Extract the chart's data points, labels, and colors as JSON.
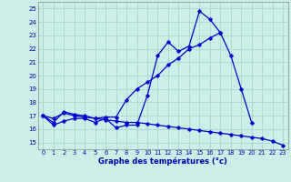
{
  "xlabel": "Graphe des températures (°c)",
  "bg_color": "#cceee8",
  "grid_color": "#aad4cc",
  "line_color": "#0000cc",
  "xlim": [
    -0.5,
    23.5
  ],
  "ylim": [
    14.5,
    25.5
  ],
  "yticks": [
    15,
    16,
    17,
    18,
    19,
    20,
    21,
    22,
    23,
    24,
    25
  ],
  "xticks": [
    0,
    1,
    2,
    3,
    4,
    5,
    6,
    7,
    8,
    9,
    10,
    11,
    12,
    13,
    14,
    15,
    16,
    17,
    18,
    19,
    20,
    21,
    22,
    23
  ],
  "line1_y": [
    17.0,
    16.3,
    16.6,
    16.8,
    16.8,
    16.5,
    16.8,
    16.1,
    16.3,
    16.3,
    18.5,
    21.5,
    22.5,
    21.8,
    22.2,
    24.8,
    24.2,
    23.2,
    null,
    null,
    null,
    null,
    null,
    null
  ],
  "line2_y": [
    17.0,
    16.5,
    17.3,
    17.1,
    17.0,
    16.8,
    16.9,
    16.9,
    18.2,
    19.0,
    19.5,
    20.0,
    20.8,
    21.3,
    22.0,
    22.3,
    22.8,
    23.2,
    21.5,
    19.0,
    16.5,
    null,
    null,
    null
  ],
  "line3_y": [
    17.0,
    16.8,
    17.2,
    17.0,
    16.9,
    16.8,
    16.7,
    16.6,
    16.5,
    16.5,
    16.4,
    16.3,
    16.2,
    16.1,
    16.0,
    15.9,
    15.8,
    15.7,
    15.6,
    15.5,
    15.4,
    15.3,
    15.1,
    14.8
  ]
}
